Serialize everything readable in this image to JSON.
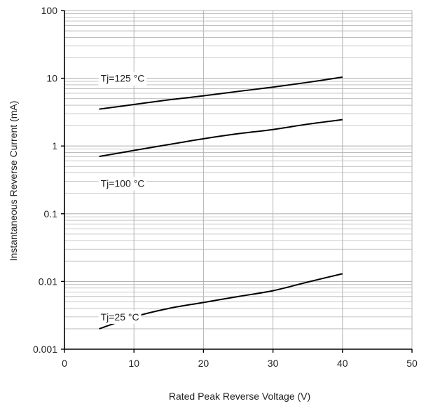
{
  "chart_data": {
    "type": "line",
    "title": "",
    "xlabel": "Rated Peak Reverse Voltage (V)",
    "ylabel": "Instantaneous Reverse Current (mA)",
    "xlim": [
      0,
      50
    ],
    "ylim": [
      0.001,
      100
    ],
    "yscale": "log",
    "grid": true,
    "legend": "none",
    "x_ticks": [
      {
        "value": 0,
        "label": "0"
      },
      {
        "value": 10,
        "label": "10"
      },
      {
        "value": 20,
        "label": "20"
      },
      {
        "value": 30,
        "label": "30"
      },
      {
        "value": 40,
        "label": "40"
      },
      {
        "value": 50,
        "label": "50"
      }
    ],
    "y_ticks": [
      {
        "value": 0.001,
        "label": "0.001"
      },
      {
        "value": 0.01,
        "label": "0.01"
      },
      {
        "value": 0.1,
        "label": "0.1"
      },
      {
        "value": 1,
        "label": "1"
      },
      {
        "value": 10,
        "label": "10"
      },
      {
        "value": 100,
        "label": "100"
      }
    ],
    "series": [
      {
        "name": "Tj=125 °C",
        "x": [
          5,
          10,
          15,
          20,
          25,
          30,
          35,
          40
        ],
        "y": [
          3.5,
          4.1,
          4.8,
          5.5,
          6.4,
          7.4,
          8.7,
          10.4
        ]
      },
      {
        "name": "Tj=100 °C",
        "x": [
          5,
          10,
          15,
          20,
          25,
          30,
          35,
          40
        ],
        "y": [
          0.7,
          0.86,
          1.05,
          1.28,
          1.52,
          1.75,
          2.1,
          2.45
        ]
      },
      {
        "name": "Tj=25 °C",
        "x": [
          5,
          10,
          15,
          20,
          25,
          30,
          35,
          40
        ],
        "y": [
          0.002,
          0.003,
          0.004,
          0.0049,
          0.006,
          0.0073,
          0.0098,
          0.013
        ]
      }
    ]
  },
  "colors": {
    "background": "#ffffff",
    "axis": "#000000",
    "grid": "#b5b5b5",
    "curve": "#000000",
    "text": "#222222"
  }
}
